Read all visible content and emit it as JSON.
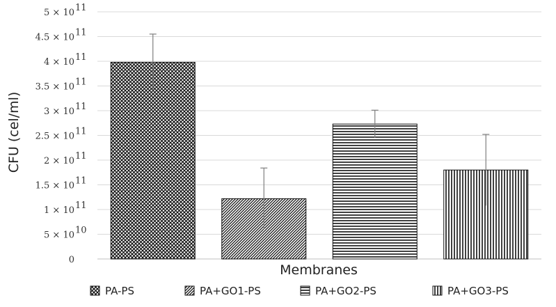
{
  "chart_data": {
    "type": "bar",
    "title": "",
    "xlabel": "Membranes",
    "ylabel": "CFU (cel/ml)",
    "ylim": [
      0,
      500000000000
    ],
    "grid": true,
    "legend_position": "bottom",
    "y_ticks": [
      {
        "value": 0,
        "label": "0"
      },
      {
        "value": 50000000000,
        "label": "5 × 10",
        "exp": "10"
      },
      {
        "value": 100000000000,
        "label": "1 × 10",
        "exp": "11"
      },
      {
        "value": 150000000000,
        "label": "1.5 × 10",
        "exp": "11"
      },
      {
        "value": 200000000000,
        "label": "2 × 10",
        "exp": "11"
      },
      {
        "value": 250000000000,
        "label": "2.5 × 10",
        "exp": "11"
      },
      {
        "value": 300000000000,
        "label": "3 × 10",
        "exp": "11"
      },
      {
        "value": 350000000000,
        "label": "3.5 × 10",
        "exp": "11"
      },
      {
        "value": 400000000000,
        "label": "4 × 10",
        "exp": "11"
      },
      {
        "value": 450000000000,
        "label": "4.5 × 10",
        "exp": "11"
      },
      {
        "value": 500000000000,
        "label": "5 × 10",
        "exp": "11"
      }
    ],
    "series": [
      {
        "name": "PA-PS",
        "value": 398000000000,
        "error": 57000000000,
        "pattern": "crosshatch"
      },
      {
        "name": "PA+GO1-PS",
        "value": 122000000000,
        "error": 62000000000,
        "pattern": "diagonal"
      },
      {
        "name": "PA+GO2-PS",
        "value": 273000000000,
        "error": 28000000000,
        "pattern": "horizontal"
      },
      {
        "name": "PA+GO3-PS",
        "value": 180000000000,
        "error": 72000000000,
        "pattern": "vertical"
      }
    ]
  }
}
